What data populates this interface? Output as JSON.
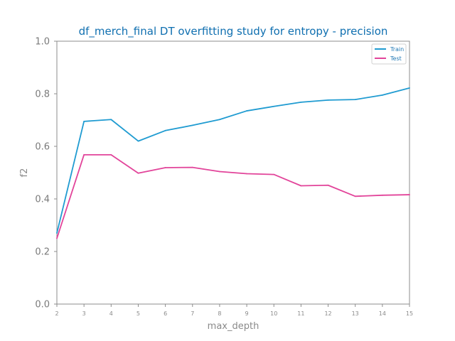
{
  "chart_data": {
    "type": "line",
    "title": "df_merch_final DT overfitting study for entropy - precision",
    "xlabel": "max_depth",
    "ylabel": "f2",
    "x": [
      2,
      3,
      4,
      5,
      6,
      7,
      8,
      9,
      10,
      11,
      12,
      13,
      14,
      15
    ],
    "xlim": [
      2,
      15
    ],
    "ylim": [
      0.0,
      1.0
    ],
    "x_ticks": [
      "2",
      "3",
      "4",
      "5",
      "6",
      "7",
      "8",
      "9",
      "10",
      "11",
      "12",
      "13",
      "14",
      "15"
    ],
    "y_ticks": [
      "0.0",
      "0.2",
      "0.4",
      "0.6",
      "0.8",
      "1.0"
    ],
    "grid": false,
    "legend_position": "top-right",
    "series": [
      {
        "name": "Train",
        "color": "#1f9bd1",
        "values": [
          0.27,
          0.695,
          0.702,
          0.62,
          0.66,
          0.68,
          0.702,
          0.735,
          0.752,
          0.768,
          0.776,
          0.778,
          0.795,
          0.822
        ]
      },
      {
        "name": "Test",
        "color": "#e2449a",
        "values": [
          0.25,
          0.568,
          0.568,
          0.498,
          0.519,
          0.52,
          0.504,
          0.496,
          0.493,
          0.45,
          0.452,
          0.41,
          0.414,
          0.416
        ]
      }
    ]
  }
}
